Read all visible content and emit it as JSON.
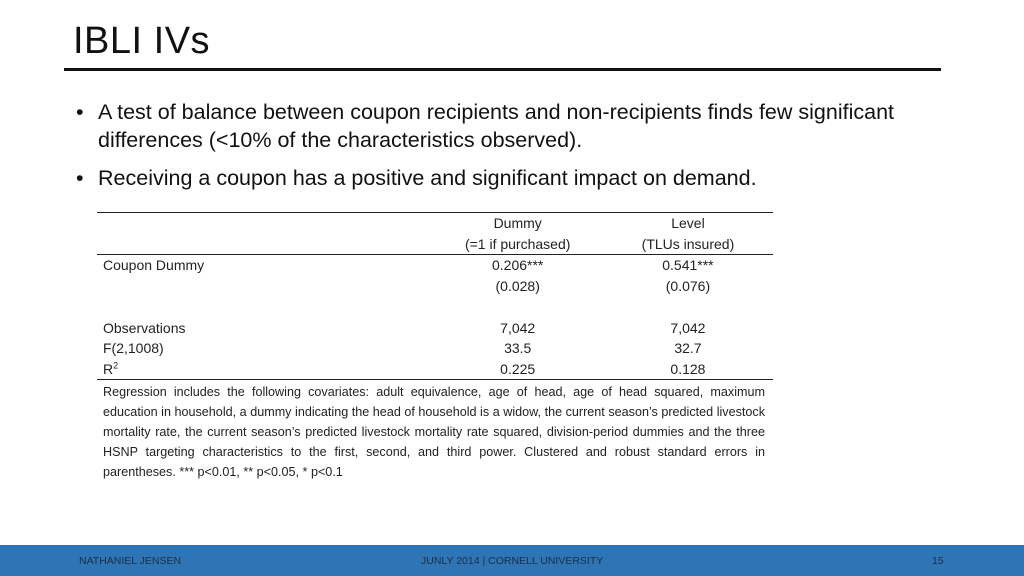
{
  "slide": {
    "title": "IBLI IVs",
    "bullets": [
      "A test of balance between coupon recipients and non-recipients finds  few significant  differences (<10% of the characteristics observed).",
      "Receiving a coupon has a positive and significant impact on demand."
    ],
    "bullet_marker": "•"
  },
  "table": {
    "header": {
      "col1_line1": "Dummy",
      "col1_line2": "(=1 if purchased)",
      "col2_line1": "Level",
      "col2_line2": "(TLUs insured)"
    },
    "rows": [
      {
        "label": "Coupon Dummy",
        "col1": "0.206***",
        "col2": "0.541***"
      },
      {
        "label": "",
        "col1": "(0.028)",
        "col2": "(0.076)"
      },
      {
        "label": "Observations",
        "col1": "7,042",
        "col2": "7,042"
      },
      {
        "label": "F(2,1008)",
        "col1": "33.5",
        "col2": "32.7"
      },
      {
        "label": "R",
        "label_sup": "2",
        "col1": "0.225",
        "col2": "0.128"
      }
    ],
    "note": "Regression includes the following covariates: adult equivalence, age of head, age of head squared, maximum education in household, a dummy indicating the head of household is a widow, the current season’s predicted livestock mortality rate, the current season’s predicted livestock mortality rate squared, division-period dummies and the three HSNP targeting characteristics to the first, second, and third power. Clustered and robust standard errors in parentheses. *** p<0.01, ** p<0.05, * p<0.1"
  },
  "footer": {
    "left": "NATHANIEL JENSEN",
    "center": "JUNLY 2014 | CORNELL UNIVERSITY",
    "page": "15",
    "bar_color": "#2e75b6"
  }
}
